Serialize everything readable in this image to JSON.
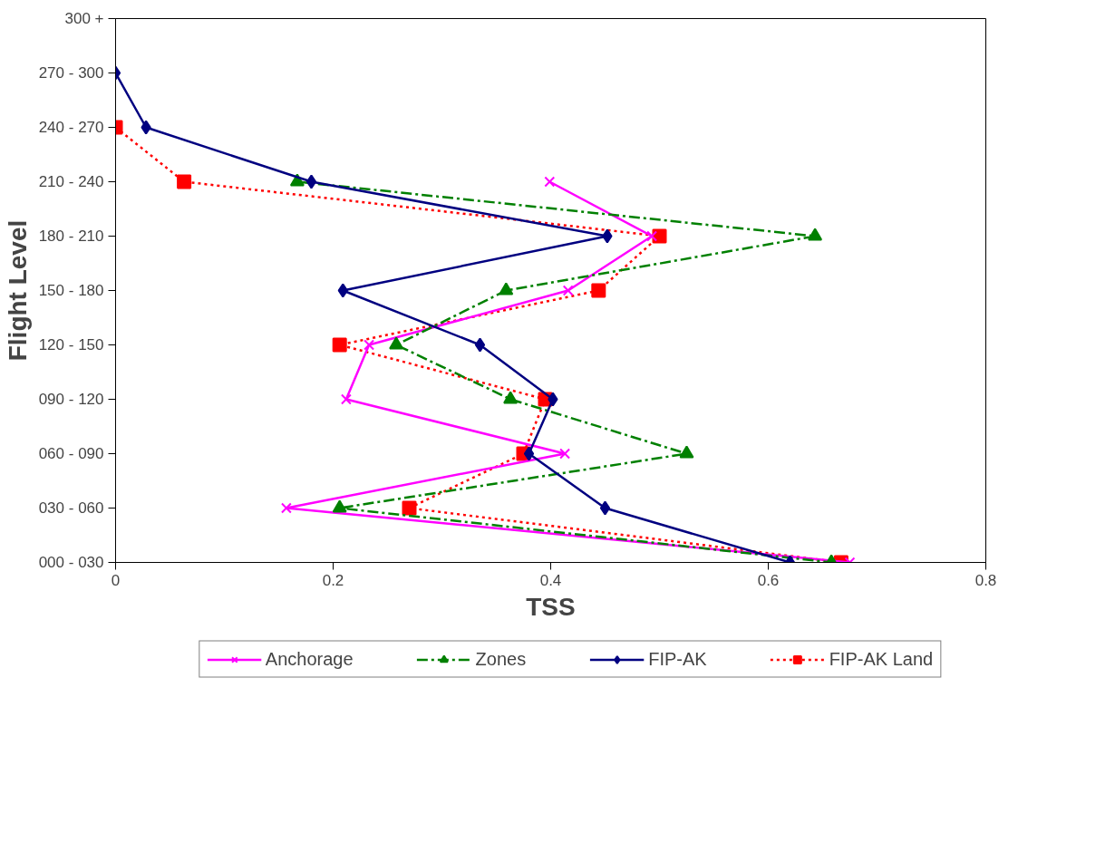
{
  "chart_data": {
    "type": "line",
    "orientation": "horizontal",
    "xlabel": "TSS",
    "ylabel": "Flight Level",
    "categories": [
      "300 +",
      "270 - 300",
      "240 - 270",
      "210 - 240",
      "180 - 210",
      "150 - 180",
      "120 - 150",
      "090 - 120",
      "060 - 090",
      "030 - 060",
      "000 - 030"
    ],
    "xlim": [
      0,
      0.8
    ],
    "xticks": [
      0,
      0.2,
      0.4,
      0.6,
      0.8
    ],
    "grid": false,
    "legend": "bottom",
    "series": [
      {
        "name": "Anchorage",
        "color": "#ff00ff",
        "marker": "cross",
        "line_style": "solid",
        "values": [
          null,
          null,
          null,
          0.399,
          0.493,
          0.416,
          0.233,
          0.212,
          0.413,
          0.157,
          0.675
        ]
      },
      {
        "name": "Zones",
        "color": "#008000",
        "marker": "triangle",
        "line_style": "dashed",
        "values": [
          null,
          null,
          null,
          0.167,
          0.643,
          0.359,
          0.258,
          0.363,
          0.525,
          0.206,
          0.658
        ]
      },
      {
        "name": "FIP-AK",
        "color": "#000080",
        "marker": "diamond",
        "line_style": "solid",
        "values": [
          null,
          0.0,
          0.028,
          0.18,
          0.452,
          0.209,
          0.335,
          0.402,
          0.38,
          0.45,
          0.62
        ]
      },
      {
        "name": "FIP-AK Land",
        "color": "#ff0000",
        "marker": "square",
        "line_style": "dotted",
        "values": [
          null,
          null,
          0.0,
          0.063,
          0.5,
          0.444,
          0.206,
          0.395,
          0.375,
          0.27,
          0.667
        ]
      }
    ]
  }
}
